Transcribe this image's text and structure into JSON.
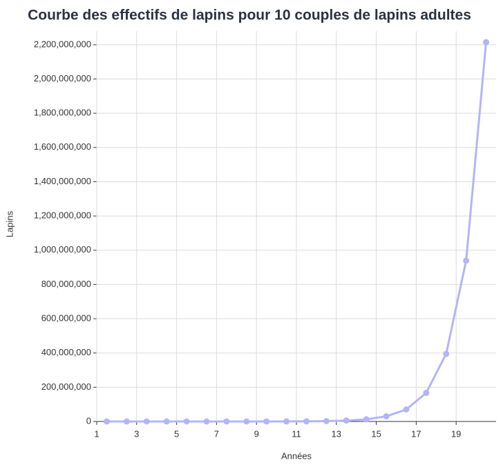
{
  "chart_data": {
    "type": "line",
    "title": "Courbe des effectifs de lapins pour 10 couples de lapins adultes",
    "x_label": "Années",
    "y_label": "Lapins",
    "x": [
      1.5,
      2.5,
      3.5,
      4.5,
      5.5,
      6.5,
      7.5,
      8.5,
      9.5,
      10.5,
      11.5,
      12.5,
      13.5,
      14.5,
      15.5,
      16.5,
      17.5,
      18.5,
      19.5,
      20.5
    ],
    "series": [
      {
        "name": "Lapins",
        "color": "#b4b4f8",
        "values": [
          170,
          400,
          945,
          2240,
          5300,
          12600,
          30000,
          71000,
          168000,
          397000,
          940000,
          2230000,
          5300000,
          12500000,
          30000000,
          70000000,
          167000000,
          395000000,
          939000000,
          2215000000
        ]
      }
    ],
    "xlim": [
      1,
      21
    ],
    "xticks": [
      1,
      3,
      5,
      7,
      9,
      11,
      13,
      15,
      17,
      19
    ],
    "ylim": [
      0,
      2280000000
    ],
    "yticks": [
      0,
      {
        "value": 200000000,
        "label": "200,000,000"
      },
      {
        "value": 400000000,
        "label": "400,000,000"
      },
      {
        "value": 600000000,
        "label": "600,000,000"
      },
      {
        "value": 800000000,
        "label": "800,000,000"
      },
      {
        "value": 1000000000,
        "label": "1,000,000,000"
      },
      {
        "value": 1200000000,
        "label": "1,200,000,000"
      },
      {
        "value": 1400000000,
        "label": "1,400,000,000"
      },
      {
        "value": 1600000000,
        "label": "1,600,000,000"
      },
      {
        "value": 1800000000,
        "label": "1,800,000,000"
      },
      {
        "value": 2000000000,
        "label": "2,000,000,000"
      },
      {
        "value": 2200000000,
        "label": "2,200,000,000"
      }
    ],
    "grid": true
  }
}
